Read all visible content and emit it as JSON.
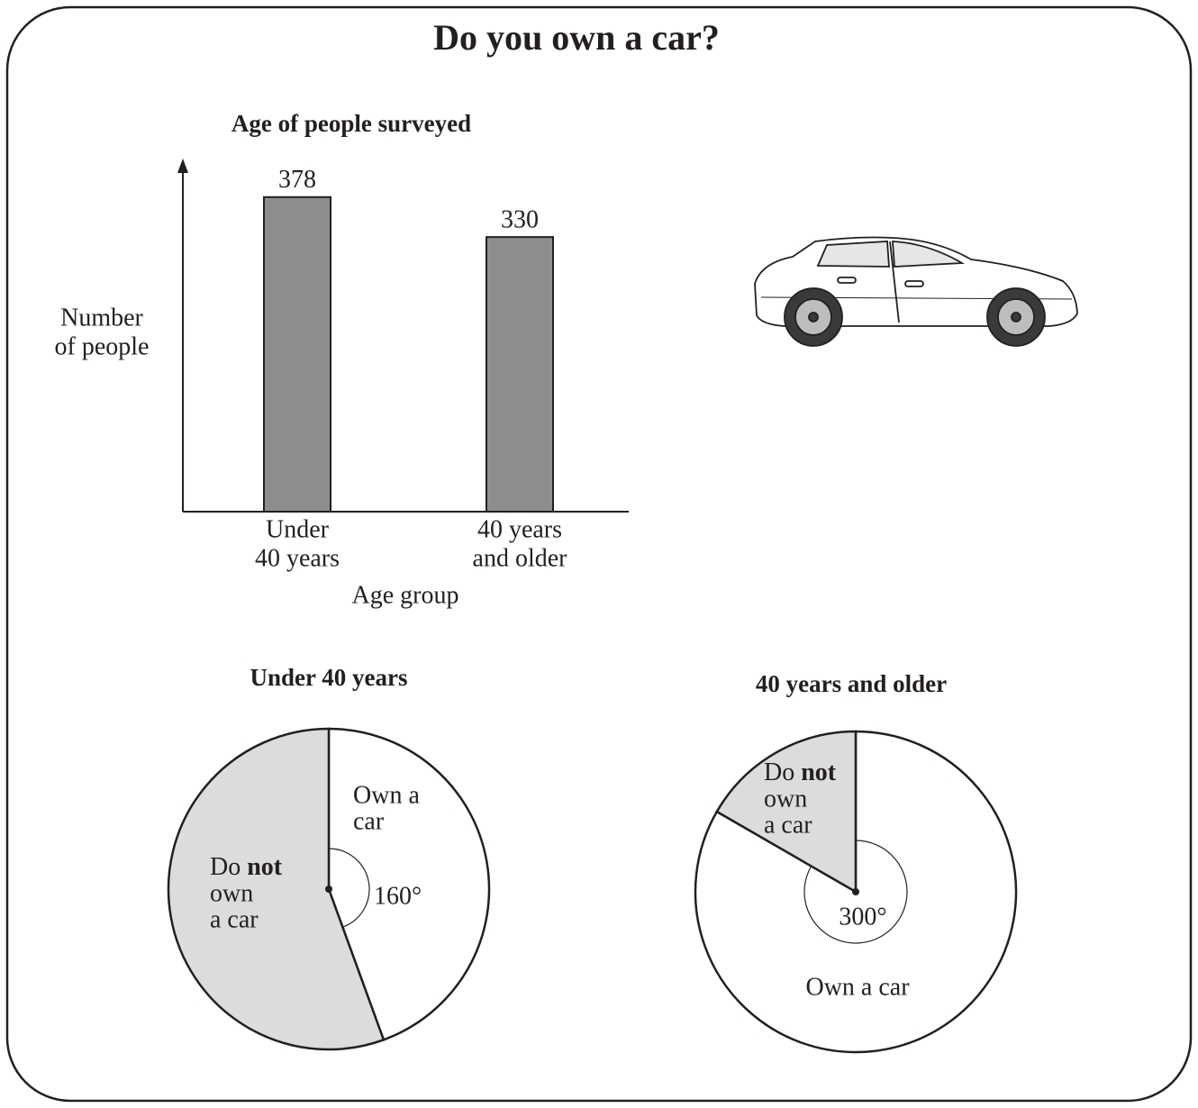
{
  "title": "Do you own a car?",
  "chart_data": [
    {
      "type": "bar",
      "title": "Age of people surveyed",
      "y_label": [
        "Number",
        "of people"
      ],
      "x_label": "Age group",
      "categories": [
        [
          "Under",
          "40 years"
        ],
        [
          "40 years",
          "and older"
        ]
      ],
      "values": [
        378,
        330
      ],
      "color": "#8d8d8f",
      "ylim": [
        0,
        420
      ]
    },
    {
      "type": "pie",
      "title": "Under 40 years",
      "categories": [
        [
          "Own a",
          "car"
        ],
        [
          [
            "Do ",
            {
              "bold": "not"
            }
          ],
          "own",
          "a car"
        ]
      ],
      "values": [
        160,
        200
      ],
      "value_labels": [
        "160°",
        null
      ],
      "colors": [
        "#ffffff",
        "#dcdcde"
      ]
    },
    {
      "type": "pie",
      "title": "40 years and older",
      "categories": [
        [
          "Own a car"
        ],
        [
          [
            "Do ",
            {
              "bold": "not"
            }
          ],
          "own",
          "a car"
        ]
      ],
      "values": [
        300,
        60
      ],
      "value_labels": [
        "300°",
        null
      ],
      "colors": [
        "#ffffff",
        "#dcdcde"
      ]
    }
  ]
}
